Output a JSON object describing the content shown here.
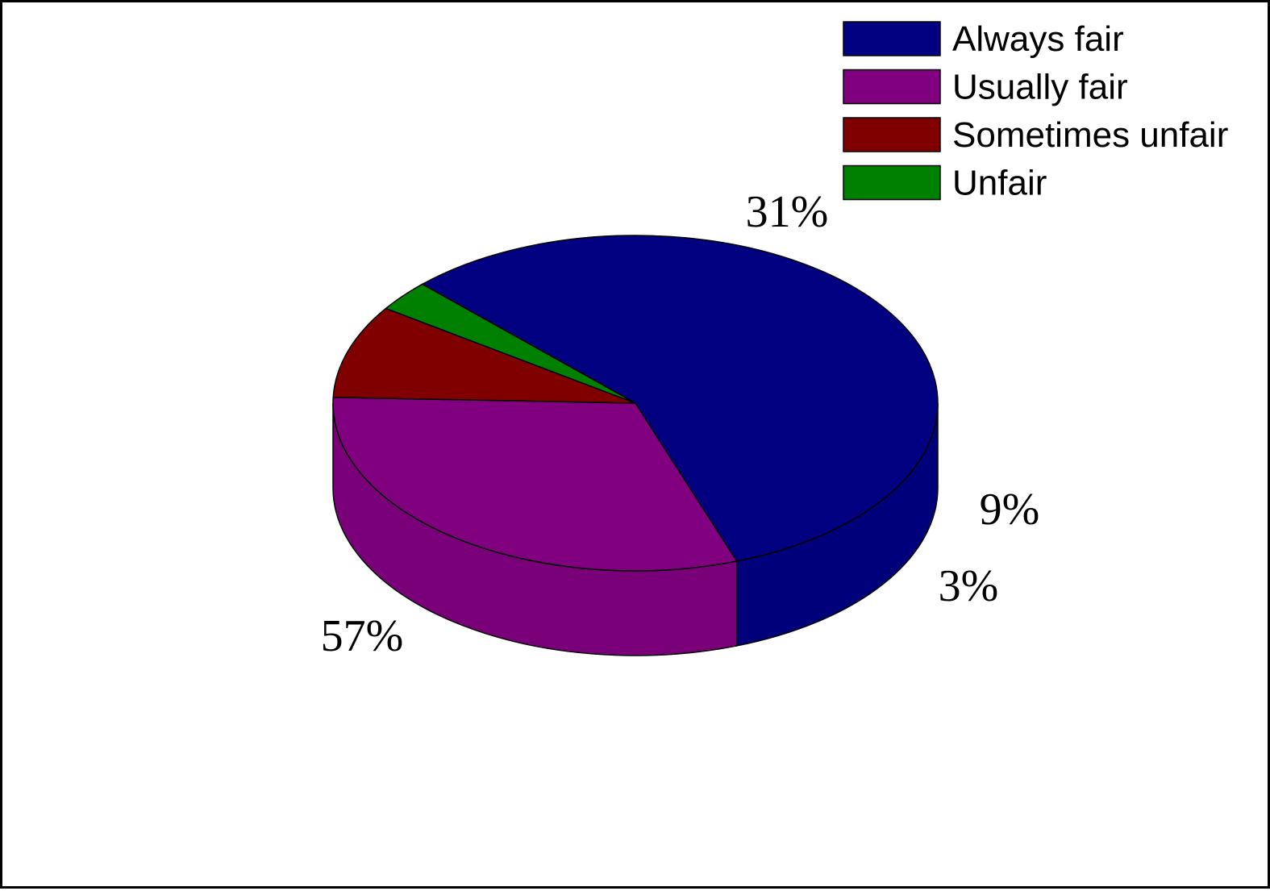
{
  "chart_data": {
    "type": "pie",
    "style": "3d",
    "title": "",
    "categories": [
      "Always fair",
      "Usually fair",
      "Sometimes unfair",
      "Unfair"
    ],
    "values": [
      57,
      31,
      9,
      3
    ],
    "labels": [
      "57%",
      "31%",
      "9%",
      "3%"
    ],
    "colors": [
      "#000080",
      "#800080",
      "#800000",
      "#008000"
    ],
    "legend": "top-right",
    "grid": false
  }
}
